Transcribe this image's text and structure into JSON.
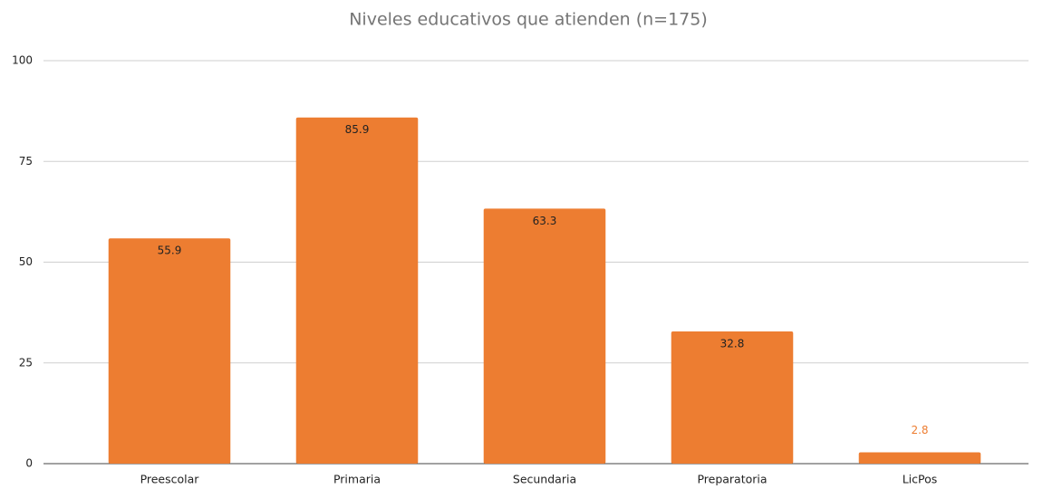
{
  "chart_data": {
    "type": "bar",
    "title": "Niveles educativos que atienden (n=175)",
    "categories": [
      "Preescolar",
      "Primaria",
      "Secundaria",
      "Preparatoria",
      "LicPos"
    ],
    "values": [
      55.9,
      85.9,
      63.3,
      32.8,
      2.8
    ],
    "color": "#ed7d31",
    "ylim": [
      0,
      100
    ],
    "yticks": [
      0,
      25,
      50,
      75,
      100
    ],
    "grid": true
  }
}
